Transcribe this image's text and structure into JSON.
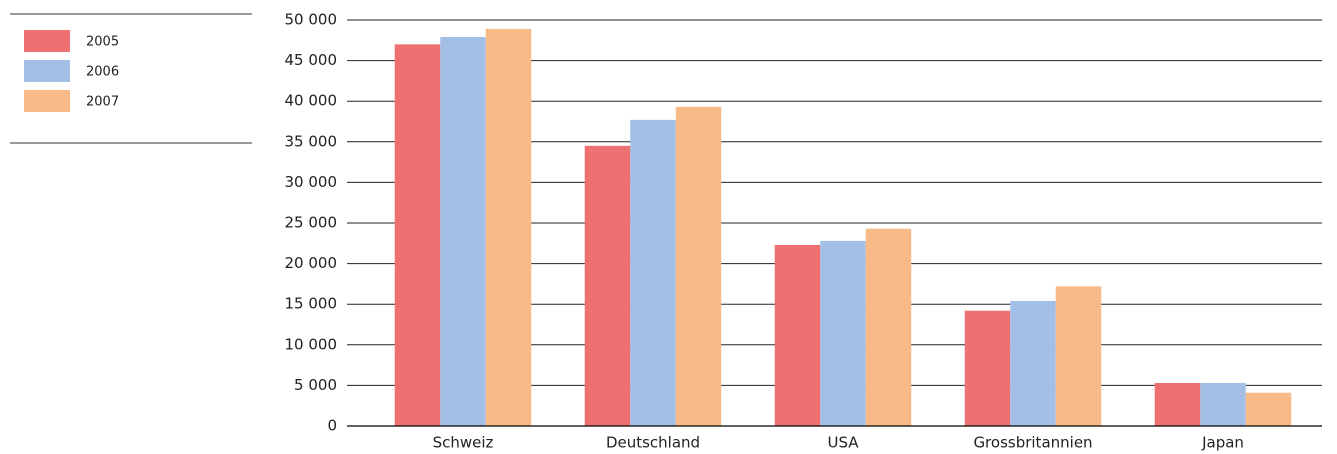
{
  "chart_data": {
    "type": "bar",
    "categories": [
      "Schweiz",
      "Deutschland",
      "USA",
      "Grossbritannien",
      "Japan"
    ],
    "series": [
      {
        "name": "2005",
        "color": "#ee7070",
        "values": [
          47000,
          34500,
          22300,
          14200,
          5300
        ]
      },
      {
        "name": "2006",
        "color": "#a3bfe5",
        "values": [
          47900,
          37700,
          22800,
          15400,
          5300
        ]
      },
      {
        "name": "2007",
        "color": "#f8bb87",
        "values": [
          48900,
          39300,
          24300,
          17200,
          4100
        ]
      }
    ],
    "ylim": [
      0,
      50000
    ],
    "yticks": [
      0,
      {
        "value": 5000,
        "label": "5 000"
      },
      {
        "value": 10000,
        "label": "10 000"
      },
      {
        "value": 15000,
        "label": "15 000"
      },
      {
        "value": 20000,
        "label": "20 000"
      },
      {
        "value": 25000,
        "label": "25 000"
      },
      {
        "value": 30000,
        "label": "30 000"
      },
      {
        "value": 35000,
        "label": "35 000"
      },
      {
        "value": 40000,
        "label": "40 000"
      },
      {
        "value": 45000,
        "label": "45 000"
      },
      {
        "value": 50000,
        "label": "50 000"
      }
    ],
    "grid": true,
    "legend": "left"
  }
}
